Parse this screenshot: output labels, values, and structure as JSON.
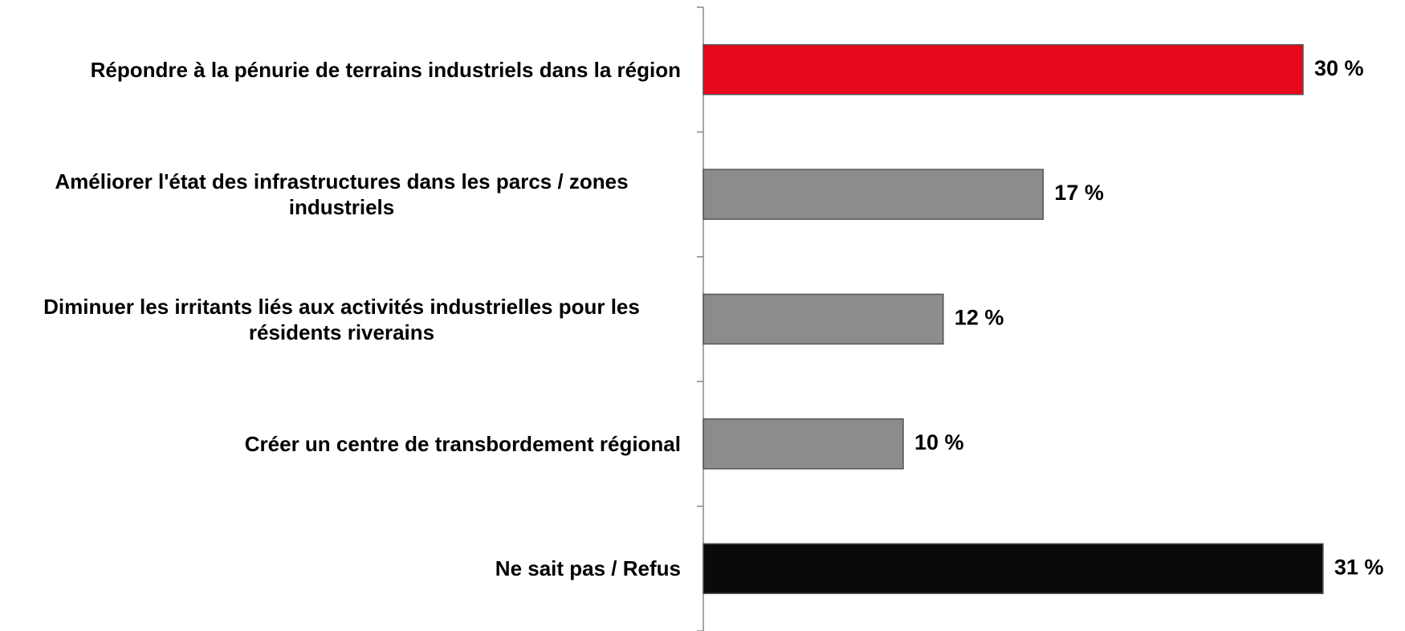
{
  "chart_data": {
    "type": "bar",
    "orientation": "horizontal",
    "categories": [
      "Répondre à la pénurie de terrains industriels dans la région",
      "Améliorer l'état des infrastructures dans les parcs / zones industriels",
      "Diminuer les irritants liés aux activités industrielles pour les résidents riverains",
      "Créer un centre de transbordement régional",
      "Ne sait pas / Refus"
    ],
    "values": [
      30,
      17,
      12,
      10,
      31
    ],
    "value_labels": [
      "30 %",
      "17 %",
      "12 %",
      "10 %",
      "31 %"
    ],
    "colors": [
      "#e8081c",
      "#8c8c8c",
      "#8c8c8c",
      "#8c8c8c",
      "#0a0a0a"
    ]
  }
}
